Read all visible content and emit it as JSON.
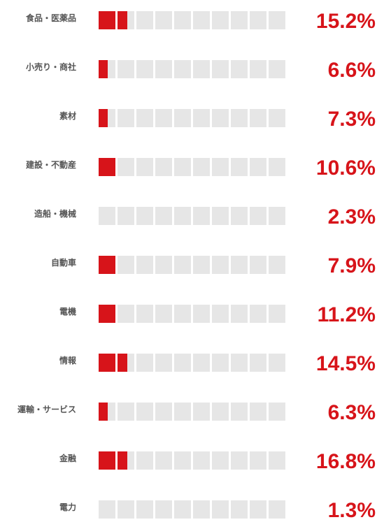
{
  "chart_data": {
    "type": "bar",
    "unit": "%",
    "categories": [
      "食品・医薬品",
      "小売り・商社",
      "素材",
      "建設・不動産",
      "造船・機械",
      "自動車",
      "電機",
      "情報",
      "運輸・サービス",
      "金融",
      "電力"
    ],
    "values": [
      15.2,
      6.6,
      7.3,
      10.6,
      2.3,
      7.9,
      11.2,
      14.5,
      6.3,
      16.8,
      1.3
    ],
    "value_labels": [
      "15.2%",
      "6.6%",
      "7.3%",
      "10.6%",
      "2.3%",
      "7.9%",
      "11.2%",
      "14.5%",
      "6.3%",
      "16.8%",
      "1.3%"
    ],
    "cells": 10,
    "filled_fraction_of_cell": [
      1.6,
      0.55,
      0.55,
      1.0,
      0.0,
      1.0,
      1.0,
      1.6,
      0.55,
      1.6,
      0.0
    ],
    "colors": {
      "fill": "#d7141a",
      "empty": "#e6e6e6",
      "category_text": "#555555",
      "value_text": "#d7141a"
    },
    "grid": false,
    "legend": "none"
  }
}
